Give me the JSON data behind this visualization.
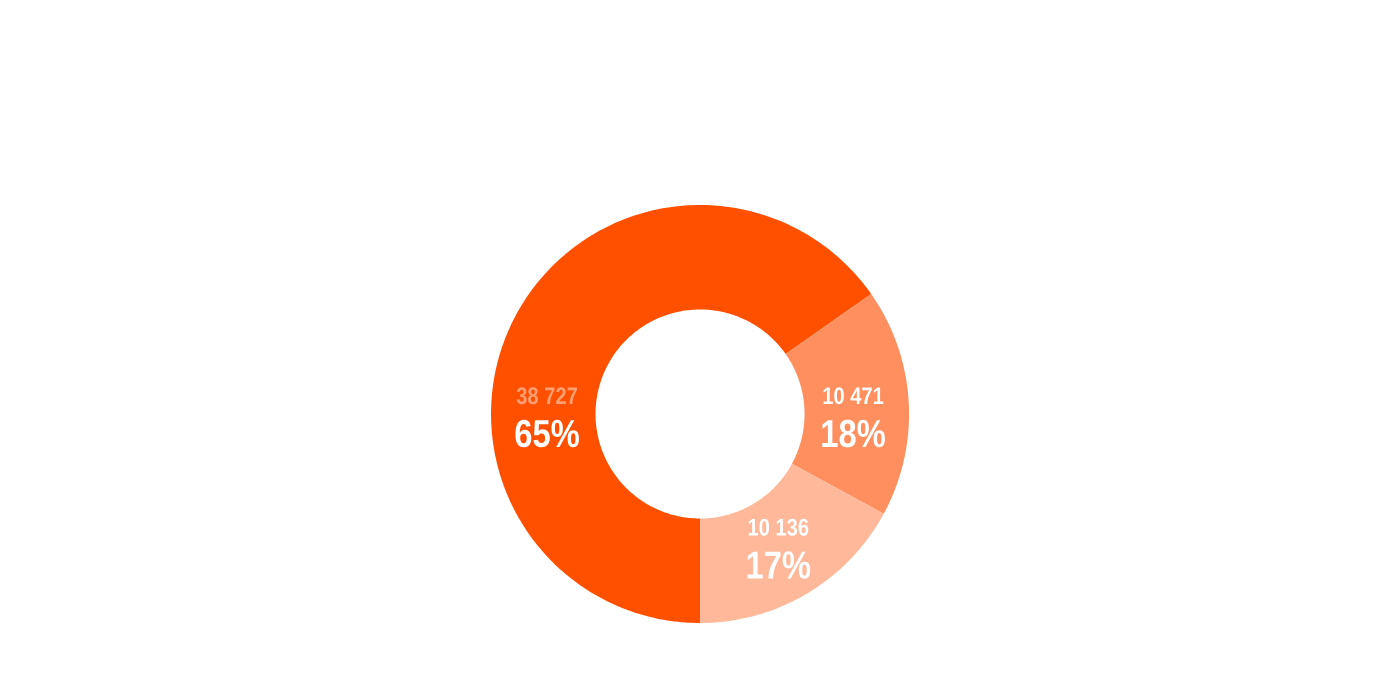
{
  "chart_data": {
    "type": "donut",
    "categories": [
      null,
      null,
      null
    ],
    "values": [
      38727,
      10471,
      10136
    ],
    "colors": [
      "#ff5000",
      "#ff8f5e",
      "#ffb899"
    ],
    "value_labels": [
      "38 727",
      "10 471",
      "10 136"
    ],
    "annotations": [
      "65%",
      "18%",
      "17%"
    ]
  }
}
